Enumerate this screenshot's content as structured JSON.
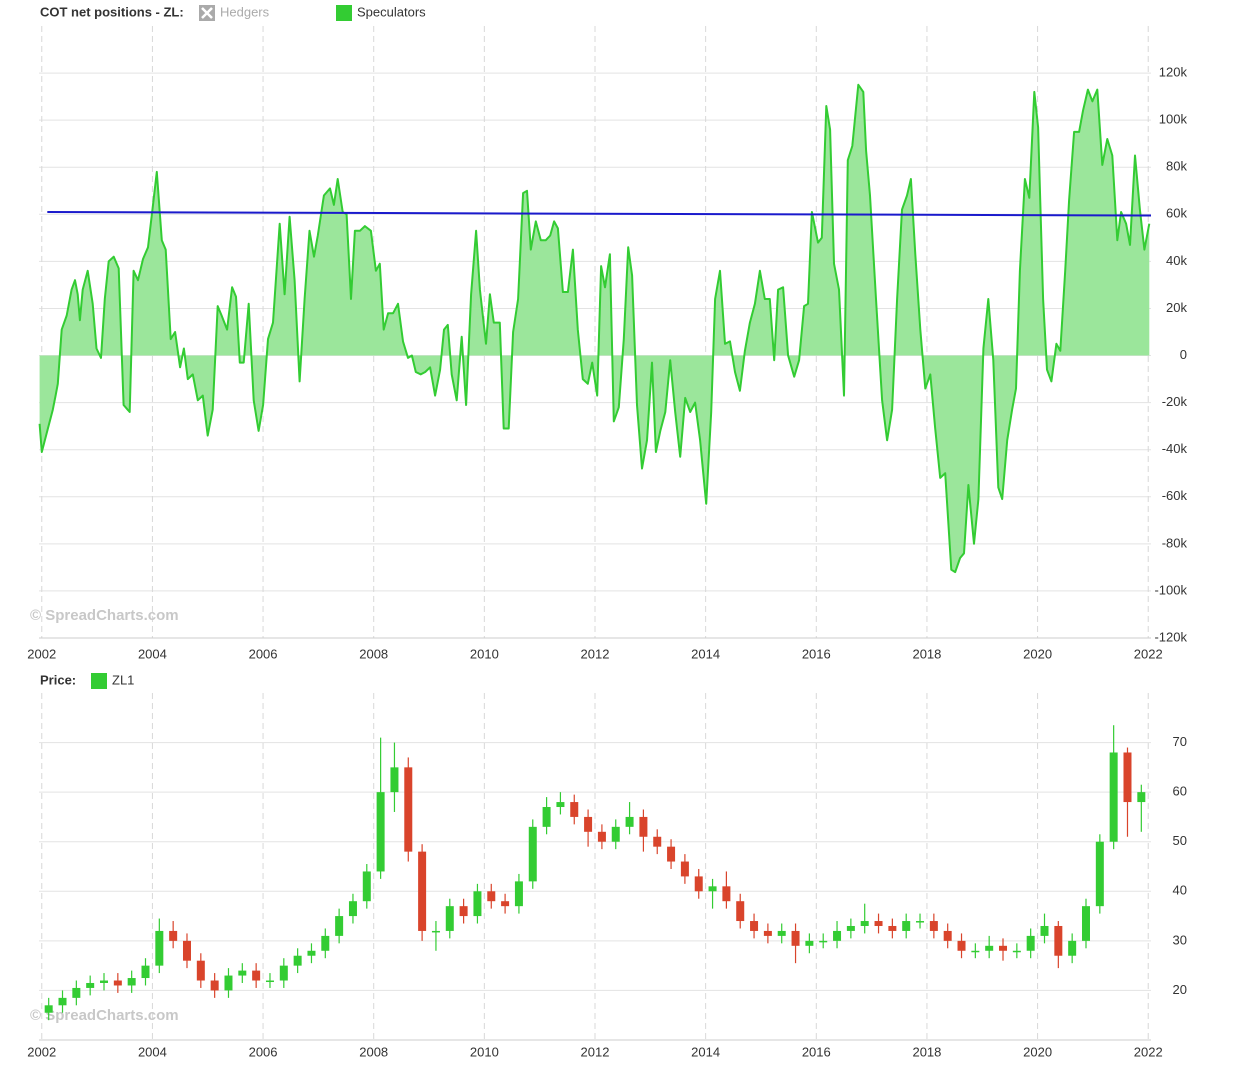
{
  "chart_data": [
    {
      "type": "area",
      "title": "COT net positions - ZL:",
      "watermark": "© SpreadCharts.com",
      "xlim": [
        2001.95,
        2022.05
      ],
      "xticks": [
        2002,
        2004,
        2006,
        2008,
        2010,
        2012,
        2014,
        2016,
        2018,
        2020,
        2022
      ],
      "ylim": [
        -120000,
        140000
      ],
      "yticks": [
        {
          "value": -120000,
          "label": "-120k"
        },
        {
          "value": -100000,
          "label": "-100k"
        },
        {
          "value": -80000,
          "label": "-80k"
        },
        {
          "value": -60000,
          "label": "-60k"
        },
        {
          "value": -40000,
          "label": "-40k"
        },
        {
          "value": -20000,
          "label": "-20k"
        },
        0,
        {
          "value": 20000,
          "label": "20k"
        },
        {
          "value": 40000,
          "label": "40k"
        },
        {
          "value": 60000,
          "label": "60k"
        },
        {
          "value": 80000,
          "label": "80k"
        },
        {
          "value": 100000,
          "label": "100k"
        },
        {
          "value": 120000,
          "label": "120k"
        }
      ],
      "grid": true,
      "x": [
        2001.96,
        2002.0,
        2002.11,
        2002.2,
        2002.25,
        2002.29,
        2002.36,
        2002.45,
        2002.54,
        2002.6,
        2002.65,
        2002.69,
        2002.74,
        2002.83,
        2002.92,
        2002.99,
        2003.07,
        2003.14,
        2003.21,
        2003.3,
        2003.39,
        2003.48,
        2003.59,
        2003.66,
        2003.74,
        2003.83,
        2003.92,
        2004.01,
        2004.08,
        2004.17,
        2004.24,
        2004.33,
        2004.41,
        2004.5,
        2004.57,
        2004.64,
        2004.73,
        2004.82,
        2004.91,
        2005.0,
        2005.09,
        2005.18,
        2005.25,
        2005.35,
        2005.44,
        2005.51,
        2005.58,
        2005.65,
        2005.74,
        2005.83,
        2005.92,
        2006.0,
        2006.09,
        2006.18,
        2006.3,
        2006.39,
        2006.48,
        2006.57,
        2006.66,
        2006.75,
        2006.84,
        2006.92,
        2006.99,
        2007.1,
        2007.21,
        2007.28,
        2007.35,
        2007.44,
        2007.51,
        2007.59,
        2007.66,
        2007.75,
        2007.84,
        2007.95,
        2008.04,
        2008.11,
        2008.18,
        2008.26,
        2008.35,
        2008.44,
        2008.53,
        2008.62,
        2008.69,
        2008.76,
        2008.85,
        2008.93,
        2009.02,
        2009.11,
        2009.2,
        2009.27,
        2009.34,
        2009.41,
        2009.5,
        2009.59,
        2009.67,
        2009.76,
        2009.85,
        2009.92,
        2010.03,
        2010.1,
        2010.17,
        2010.28,
        2010.35,
        2010.44,
        2010.52,
        2010.61,
        2010.7,
        2010.77,
        2010.84,
        2010.93,
        2011.02,
        2011.11,
        2011.19,
        2011.26,
        2011.33,
        2011.42,
        2011.51,
        2011.6,
        2011.69,
        2011.78,
        2011.87,
        2011.95,
        2012.04,
        2012.11,
        2012.18,
        2012.27,
        2012.34,
        2012.43,
        2012.52,
        2012.6,
        2012.67,
        2012.76,
        2012.85,
        2012.94,
        2013.03,
        2013.1,
        2013.18,
        2013.27,
        2013.36,
        2013.45,
        2013.54,
        2013.63,
        2013.72,
        2013.81,
        2013.9,
        2014.01,
        2014.1,
        2014.17,
        2014.26,
        2014.35,
        2014.44,
        2014.53,
        2014.62,
        2014.71,
        2014.8,
        2014.89,
        2014.98,
        2015.07,
        2015.16,
        2015.24,
        2015.31,
        2015.4,
        2015.49,
        2015.6,
        2015.69,
        2015.78,
        2015.85,
        2015.92,
        2016.03,
        2016.1,
        2016.18,
        2016.25,
        2016.32,
        2016.41,
        2016.5,
        2016.57,
        2016.65,
        2016.76,
        2016.85,
        2016.9,
        2016.97,
        2017.08,
        2017.19,
        2017.28,
        2017.37,
        2017.46,
        2017.55,
        2017.64,
        2017.71,
        2017.79,
        2017.88,
        2017.97,
        2018.06,
        2018.15,
        2018.24,
        2018.33,
        2018.44,
        2018.51,
        2018.6,
        2018.67,
        2018.75,
        2018.85,
        2018.93,
        2019.02,
        2019.11,
        2019.2,
        2019.29,
        2019.36,
        2019.45,
        2019.54,
        2019.61,
        2019.68,
        2019.77,
        2019.85,
        2019.94,
        2020.01,
        2020.1,
        2020.17,
        2020.25,
        2020.34,
        2020.41,
        2020.5,
        2020.57,
        2020.66,
        2020.75,
        2020.82,
        2020.91,
        2020.99,
        2021.08,
        2021.17,
        2021.26,
        2021.35,
        2021.44,
        2021.51,
        2021.6,
        2021.67,
        2021.76,
        2021.85,
        2021.93,
        2022.02
      ],
      "series": [
        {
          "name": "Hedgers",
          "color": "#aaaaaa",
          "visible": false
        },
        {
          "name": "Speculators",
          "color": "#33cc33",
          "fill": "#9be69b",
          "visible": true,
          "values": [
            -29000,
            -41000,
            -31000,
            -23000,
            -17000,
            -12000,
            11000,
            17000,
            28000,
            32000,
            26000,
            15000,
            28000,
            36000,
            22000,
            3000,
            -1000,
            24000,
            40000,
            42000,
            37000,
            -21000,
            -24000,
            36000,
            32000,
            41000,
            46000,
            64000,
            78000,
            49000,
            45000,
            7000,
            10000,
            -5000,
            3000,
            -10000,
            -8000,
            -19000,
            -17000,
            -34000,
            -23000,
            21000,
            17000,
            11000,
            29000,
            25000,
            -3000,
            -3000,
            22000,
            -19000,
            -32000,
            -21000,
            7000,
            14000,
            56000,
            26000,
            59000,
            32000,
            -11000,
            24000,
            53000,
            42000,
            51000,
            68000,
            71000,
            64000,
            75000,
            61000,
            60000,
            24000,
            53000,
            53000,
            55000,
            53000,
            36000,
            39000,
            11000,
            18000,
            18000,
            22000,
            6000,
            -1000,
            0,
            -7000,
            -8000,
            -7000,
            -5000,
            -17000,
            -6000,
            11000,
            13000,
            -8000,
            -19000,
            8000,
            -21000,
            26000,
            53000,
            28000,
            5000,
            26000,
            14000,
            14000,
            -31000,
            -31000,
            10000,
            24000,
            69000,
            70000,
            45000,
            57000,
            49000,
            49000,
            51000,
            57000,
            54000,
            27000,
            27000,
            45000,
            11000,
            -10000,
            -12000,
            -3000,
            -17000,
            38000,
            29000,
            43000,
            -28000,
            -22000,
            7000,
            46000,
            34000,
            -21000,
            -48000,
            -36000,
            -3000,
            -41000,
            -32000,
            -24000,
            -2000,
            -24000,
            -43000,
            -18000,
            -24000,
            -20000,
            -36000,
            -63000,
            -24000,
            24000,
            36000,
            5000,
            6000,
            -7000,
            -15000,
            2000,
            14000,
            22000,
            36000,
            24000,
            24000,
            -2000,
            28000,
            29000,
            0,
            -9000,
            -2000,
            21000,
            22000,
            61000,
            48000,
            50000,
            106000,
            96000,
            39000,
            28000,
            -17000,
            83000,
            89000,
            115000,
            112000,
            87000,
            68000,
            24000,
            -19000,
            -36000,
            -23000,
            24000,
            62000,
            68000,
            75000,
            43000,
            11000,
            -14000,
            -8000,
            -31000,
            -52000,
            -50000,
            -91000,
            -92000,
            -86000,
            -84000,
            -55000,
            -80000,
            -61000,
            3000,
            24000,
            -2000,
            -56000,
            -61000,
            -36000,
            -23000,
            -14000,
            36000,
            75000,
            67000,
            112000,
            97000,
            24000,
            -6000,
            -11000,
            5000,
            2000,
            36000,
            66000,
            95000,
            95000,
            104000,
            113000,
            108000,
            113000,
            81000,
            92000,
            85000,
            49000,
            61000,
            56000,
            47000,
            85000,
            62000,
            45000,
            56000
          ]
        }
      ],
      "trend_line": {
        "color": "#1a1acc",
        "x": [
          2002.1,
          2022.05
        ],
        "values": [
          61000,
          59500
        ]
      }
    },
    {
      "type": "candlestick",
      "title": "Price:",
      "watermark": "© SpreadCharts.com",
      "xlim": [
        2001.95,
        2022.05
      ],
      "xticks": [
        2002,
        2004,
        2006,
        2008,
        2010,
        2012,
        2014,
        2016,
        2018,
        2020,
        2022
      ],
      "ylim": [
        10,
        80
      ],
      "yticks": [
        20,
        30,
        40,
        50,
        60,
        70
      ],
      "grid": true,
      "x": [
        2002.125,
        2002.375,
        2002.625,
        2002.875,
        2003.125,
        2003.375,
        2003.625,
        2003.875,
        2004.125,
        2004.375,
        2004.625,
        2004.875,
        2005.125,
        2005.375,
        2005.625,
        2005.875,
        2006.125,
        2006.375,
        2006.625,
        2006.875,
        2007.125,
        2007.375,
        2007.625,
        2007.875,
        2008.125,
        2008.375,
        2008.625,
        2008.875,
        2009.125,
        2009.375,
        2009.625,
        2009.875,
        2010.125,
        2010.375,
        2010.625,
        2010.875,
        2011.125,
        2011.375,
        2011.625,
        2011.875,
        2012.125,
        2012.375,
        2012.625,
        2012.875,
        2013.125,
        2013.375,
        2013.625,
        2013.875,
        2014.125,
        2014.375,
        2014.625,
        2014.875,
        2015.125,
        2015.375,
        2015.625,
        2015.875,
        2016.125,
        2016.375,
        2016.625,
        2016.875,
        2017.125,
        2017.375,
        2017.625,
        2017.875,
        2018.125,
        2018.375,
        2018.625,
        2018.875,
        2019.125,
        2019.375,
        2019.625,
        2019.875,
        2020.125,
        2020.375,
        2020.625,
        2020.875,
        2021.125,
        2021.375,
        2021.625,
        2021.875
      ],
      "series": [
        {
          "name": "ZL1",
          "color": "#33cc33",
          "down_color": "#d9442b",
          "open": [
            15.5,
            17,
            18.5,
            20.5,
            21.5,
            22,
            21,
            22.5,
            25,
            32,
            30,
            26,
            22,
            20,
            23,
            24,
            22,
            22,
            25,
            27,
            28,
            31,
            35,
            38,
            44,
            60,
            65,
            48,
            32,
            32,
            37,
            35,
            40,
            38,
            37,
            42,
            53,
            57,
            58,
            55,
            52,
            50,
            53,
            55,
            51,
            49,
            46,
            43,
            40,
            41,
            38,
            34,
            32,
            31,
            32,
            29,
            30,
            30,
            32,
            33,
            34,
            33,
            32,
            34,
            34,
            32,
            30,
            28,
            28,
            29,
            28,
            28,
            31,
            33,
            27,
            30,
            37,
            50,
            68,
            58
          ],
          "high": [
            18.5,
            20,
            22,
            23,
            23.5,
            23.5,
            24,
            26.5,
            34.5,
            34,
            31.5,
            27.5,
            23.5,
            24.5,
            25.5,
            25.5,
            23.5,
            26.5,
            28.5,
            29.5,
            32.5,
            36.5,
            39.5,
            45.5,
            71,
            70,
            67,
            49.5,
            34,
            38.5,
            38.5,
            41.5,
            41.5,
            39.5,
            43.5,
            54.5,
            59,
            60,
            59.5,
            56.5,
            53.5,
            54.5,
            58,
            56.5,
            52.5,
            50.5,
            47.5,
            44.5,
            42.5,
            44,
            39.5,
            35.5,
            33.5,
            33.5,
            33.5,
            31.5,
            31.5,
            34,
            34.5,
            37.5,
            35.5,
            34.5,
            35.5,
            35.5,
            35.5,
            33.5,
            31.5,
            29.5,
            31,
            30.5,
            29.5,
            32.5,
            35.5,
            34,
            31.5,
            38.5,
            51.5,
            73.5,
            69,
            61.5
          ],
          "low": [
            14,
            15.5,
            17,
            19,
            20,
            19.5,
            19.5,
            21,
            23.5,
            28.5,
            24.5,
            20.5,
            18.5,
            18.5,
            21.5,
            20.5,
            20.5,
            20.5,
            23.5,
            25.5,
            26.5,
            29.5,
            33.5,
            36.5,
            42.5,
            56,
            46,
            30,
            28,
            30.5,
            33.5,
            33.5,
            36.5,
            35.5,
            35.5,
            40.5,
            51.5,
            55.5,
            53.5,
            49,
            48.5,
            48.5,
            51.5,
            48,
            47.5,
            44.5,
            41.5,
            38.5,
            36.5,
            36.5,
            32.5,
            30.5,
            29.5,
            29.5,
            25.5,
            27.5,
            28.5,
            28.5,
            30.5,
            31.5,
            31.5,
            30.5,
            30.5,
            32.5,
            30.5,
            28.5,
            26.5,
            26.5,
            26.5,
            26,
            26.5,
            26.5,
            29.5,
            24.5,
            25.5,
            28.5,
            35.5,
            48.5,
            51,
            52
          ],
          "close": [
            17,
            18.5,
            20.5,
            21.5,
            22,
            21,
            22.5,
            25,
            32,
            30,
            26,
            22,
            20,
            23,
            24,
            22,
            22,
            25,
            27,
            28,
            31,
            35,
            38,
            44,
            60,
            65,
            48,
            32,
            32,
            37,
            35,
            40,
            38,
            37,
            42,
            53,
            57,
            58,
            55,
            52,
            50,
            53,
            55,
            51,
            49,
            46,
            43,
            40,
            41,
            38,
            34,
            32,
            31,
            32,
            29,
            30,
            30,
            32,
            33,
            34,
            33,
            32,
            34,
            34,
            32,
            30,
            28,
            28,
            29,
            28,
            28,
            31,
            33,
            27,
            30,
            37,
            50,
            68,
            58,
            60
          ]
        }
      ]
    }
  ]
}
